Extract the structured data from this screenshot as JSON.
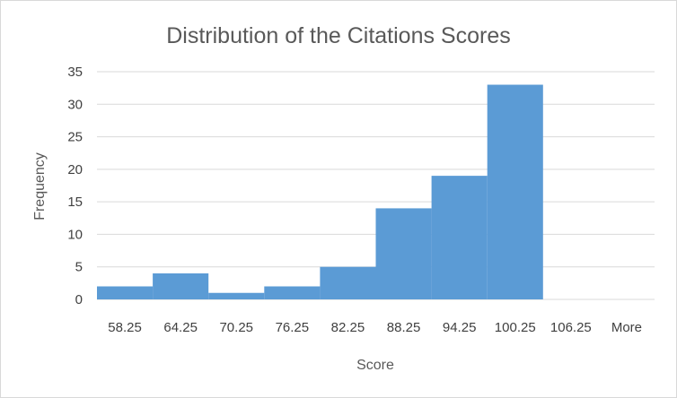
{
  "chart_data": {
    "type": "bar",
    "title": "Distribution of the Citations Scores",
    "xlabel": "Score",
    "ylabel": "Frequency",
    "categories": [
      "58.25",
      "64.25",
      "70.25",
      "76.25",
      "82.25",
      "88.25",
      "94.25",
      "100.25",
      "106.25",
      "More"
    ],
    "values": [
      2,
      4,
      1,
      2,
      5,
      14,
      19,
      33,
      0,
      0
    ],
    "ylim": [
      0,
      35
    ],
    "yticks": [
      0,
      5,
      10,
      15,
      20,
      25,
      30,
      35
    ],
    "grid": true,
    "legend": "none",
    "bar_color": "#5b9bd5",
    "grid_color": "#d9d9d9"
  }
}
